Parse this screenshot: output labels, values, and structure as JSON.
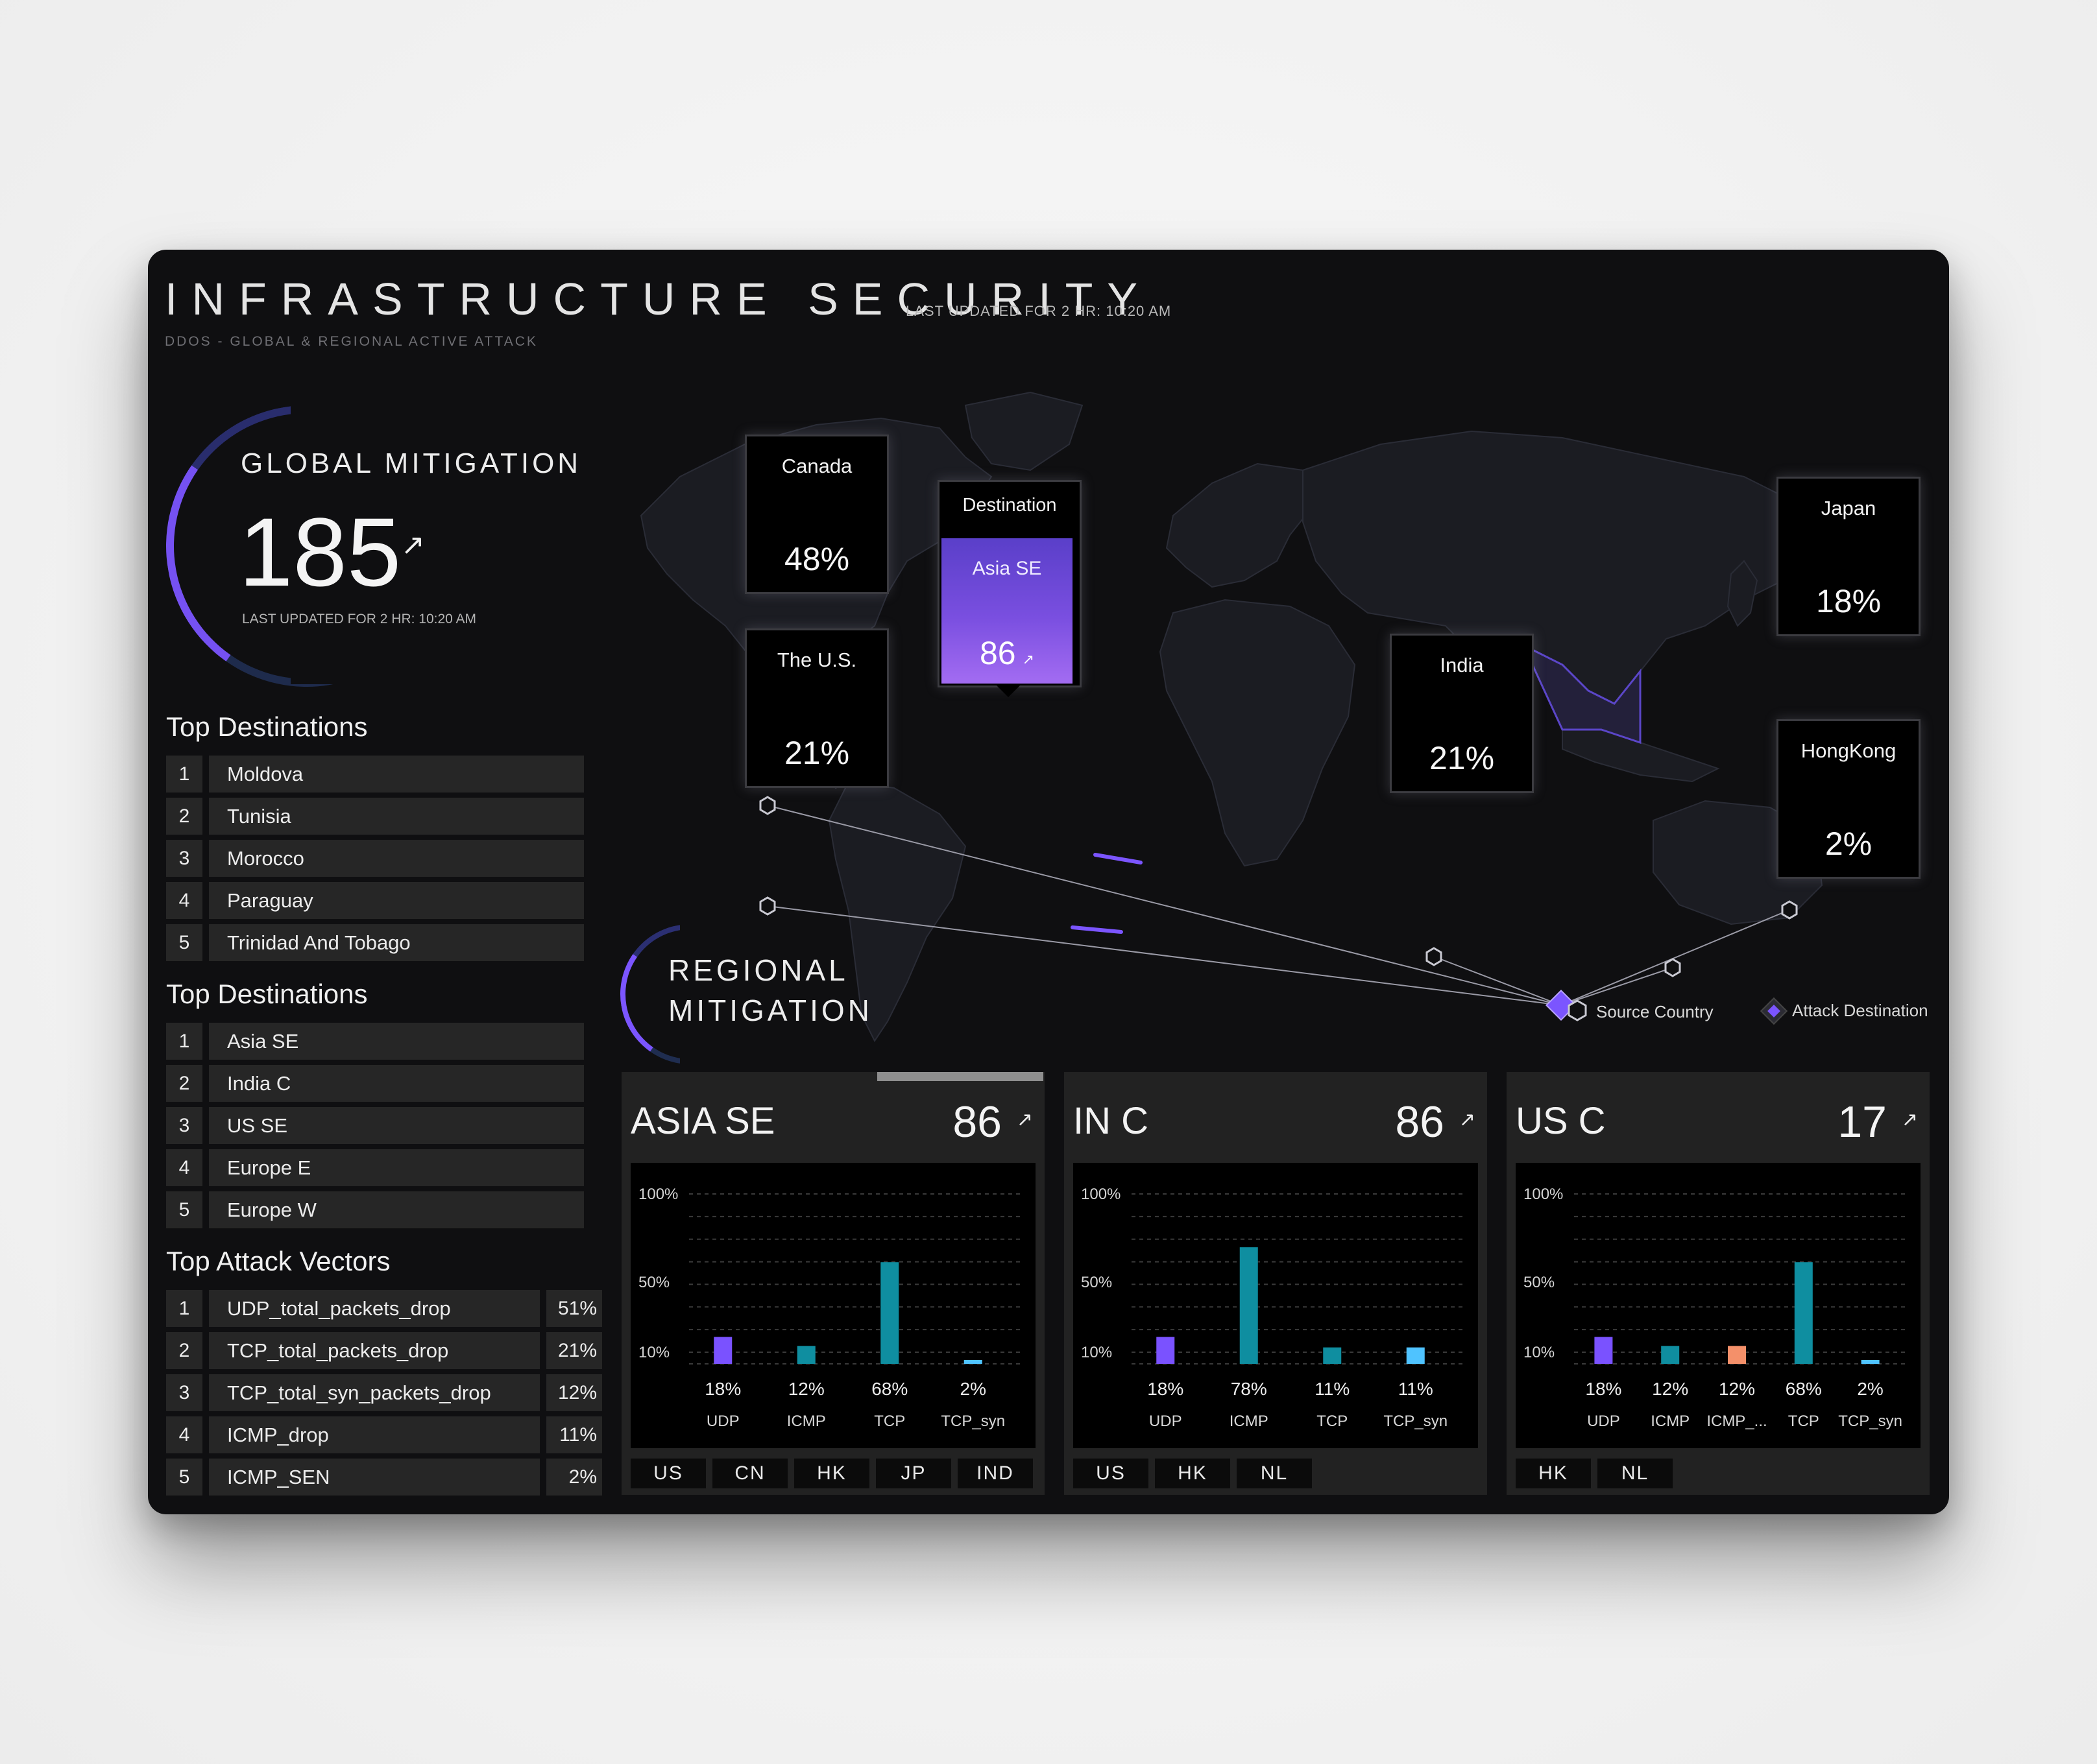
{
  "header": {
    "title": "INFRASTRUCTURE SECURITY",
    "updated": "LAST UPDATED FOR 2 HR: 10:20 AM",
    "subtitle": "DDOS - GLOBAL & REGIONAL ACTIVE ATTACK"
  },
  "global": {
    "label": "GLOBAL MITIGATION",
    "value": "185",
    "trend_icon": "trending-up-icon",
    "trend_glyph": "↗",
    "updated": "LAST UPDATED FOR 2 HR: 10:20 AM"
  },
  "lists": [
    {
      "title": "Top Destinations",
      "items": [
        {
          "rank": "1",
          "label": "Moldova"
        },
        {
          "rank": "2",
          "label": "Tunisia"
        },
        {
          "rank": "3",
          "label": "Morocco"
        },
        {
          "rank": "4",
          "label": "Paraguay"
        },
        {
          "rank": "5",
          "label": "Trinidad And Tobago"
        }
      ]
    },
    {
      "title": "Top Destinations",
      "items": [
        {
          "rank": "1",
          "label": "Asia SE"
        },
        {
          "rank": "2",
          "label": "India C"
        },
        {
          "rank": "3",
          "label": "US SE"
        },
        {
          "rank": "4",
          "label": "Europe E"
        },
        {
          "rank": "5",
          "label": "Europe W"
        }
      ]
    },
    {
      "title": "Top Attack Vectors",
      "items": [
        {
          "rank": "1",
          "label": "UDP_total_packets_drop",
          "pct": "51%"
        },
        {
          "rank": "2",
          "label": "TCP_total_packets_drop",
          "pct": "21%"
        },
        {
          "rank": "3",
          "label": "TCP_total_syn_packets_drop",
          "pct": "12%"
        },
        {
          "rank": "4",
          "label": "ICMP_drop",
          "pct": "11%"
        },
        {
          "rank": "5",
          "label": "ICMP_SEN",
          "pct": "2%"
        }
      ]
    }
  ],
  "map": {
    "sources": [
      {
        "name": "Canada",
        "value": "48%"
      },
      {
        "name": "The U.S.",
        "value": "21%"
      },
      {
        "name": "India",
        "value": "21%"
      },
      {
        "name": "Japan",
        "value": "18%"
      },
      {
        "name": "HongKong",
        "value": "2%"
      }
    ],
    "destination": {
      "label": "Destination",
      "name": "Asia SE",
      "value": "86",
      "trend_glyph": "↗"
    },
    "legend": {
      "source": "Source Country",
      "destination": "Attack Destination"
    },
    "colors": {
      "accent": "#7b55ff",
      "line": "#9a9aa6",
      "land": "#1b1c22"
    }
  },
  "regional": {
    "label_line1": "REGIONAL",
    "label_line2": "MITIGATION",
    "panels": [
      {
        "title": "ASIA SE",
        "value": "86",
        "trend_glyph": "↗",
        "tags": [
          "US",
          "CN",
          "HK",
          "JP",
          "IND"
        ],
        "chart_data": {
          "type": "bar",
          "y_ticks": [
            "100%",
            "50%",
            "10%"
          ],
          "categories": [
            "UDP",
            "ICMP",
            "TCP",
            "TCP_syn"
          ],
          "values": [
            18,
            12,
            68,
            2
          ],
          "labels": [
            "18%",
            "12%",
            "68%",
            "2%"
          ],
          "colors": [
            "#7a52ff",
            "#0f8ea0",
            "#0f8ea0",
            "#4fc3ff"
          ]
        }
      },
      {
        "title": "IN C",
        "value": "86",
        "trend_glyph": "↗",
        "tags": [
          "US",
          "HK",
          "NL"
        ],
        "chart_data": {
          "type": "bar",
          "y_ticks": [
            "100%",
            "50%",
            "10%"
          ],
          "categories": [
            "UDP",
            "ICMP",
            "TCP",
            "TCP_syn"
          ],
          "values": [
            18,
            78,
            11,
            11
          ],
          "labels": [
            "18%",
            "78%",
            "11%",
            "11%"
          ],
          "colors": [
            "#7a52ff",
            "#0f8ea0",
            "#0f8ea0",
            "#4fc3ff"
          ]
        }
      },
      {
        "title": "US C",
        "value": "17",
        "trend_glyph": "↗",
        "tags": [
          "HK",
          "NL"
        ],
        "chart_data": {
          "type": "bar",
          "y_ticks": [
            "100%",
            "50%",
            "10%"
          ],
          "categories": [
            "UDP",
            "ICMP",
            "ICMP_...",
            "TCP",
            "TCP_syn"
          ],
          "values": [
            18,
            12,
            12,
            68,
            2
          ],
          "labels": [
            "18%",
            "12%",
            "12%",
            "68%",
            "2%"
          ],
          "colors": [
            "#7a52ff",
            "#0f8ea0",
            "#f4906a",
            "#0f8ea0",
            "#4fc3ff"
          ]
        }
      }
    ]
  }
}
